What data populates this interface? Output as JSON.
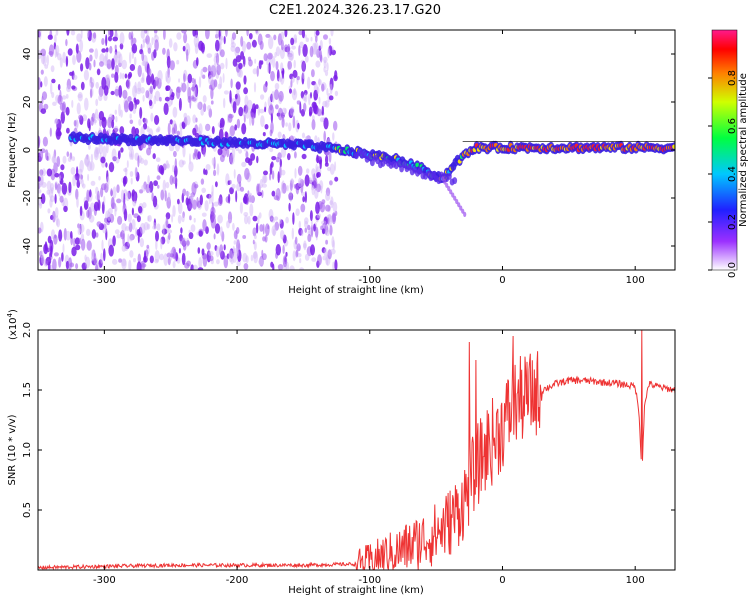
{
  "title": "C2E1.2024.326.23.17.G20",
  "colors": {
    "signal_line": "#ee3333",
    "spectrogram_background_purple": "#8a2be2",
    "colorbar_top": "#ff1a8c"
  },
  "chart_data": [
    {
      "type": "heatmap",
      "xlabel": "Height of straight line (km)",
      "ylabel": "Frequency (Hz)",
      "xlim": [
        -350,
        130
      ],
      "ylim": [
        -50,
        50
      ],
      "xticks": [
        -300,
        -200,
        -100,
        0,
        100
      ],
      "xtick_labels": [
        "-300",
        "-200",
        "-100",
        "0",
        "100"
      ],
      "yticks": [
        -40,
        -20,
        0,
        20,
        40
      ],
      "ytick_labels": [
        "-40",
        "-20",
        "0",
        "20",
        "40"
      ],
      "colorbar": {
        "label": "Normalized spectral amplitude",
        "range": [
          0,
          1
        ],
        "ticks": [
          0.0,
          0.2,
          0.4,
          0.6,
          0.8
        ],
        "tick_labels": [
          "0.0",
          "0.2",
          "0.4",
          "0.6",
          "0.8"
        ],
        "colormap": "rainbow"
      },
      "ridge": {
        "description": "main frequency trace",
        "x": [
          -325,
          -250,
          -200,
          -150,
          -120,
          -100,
          -80,
          -60,
          -45,
          -35,
          -20,
          0,
          30,
          60,
          100,
          130
        ],
        "y": [
          5,
          4,
          3,
          2,
          0,
          -2,
          -4,
          -8,
          -12,
          -5,
          1,
          1,
          1,
          1,
          1,
          1
        ]
      },
      "noise_region_end_x": -125
    },
    {
      "type": "line",
      "xlabel": "Height of straight line (km)",
      "ylabel": "SNR (10 * v/v)",
      "y_scale_label": "(x10",
      "y_scale_exponent": "4",
      "xlim": [
        -350,
        130
      ],
      "ylim": [
        0,
        2.0
      ],
      "xticks": [
        -300,
        -200,
        -100,
        0,
        100
      ],
      "xtick_labels": [
        "-300",
        "-200",
        "-100",
        "0",
        "100"
      ],
      "yticks": [
        0.5,
        1.0,
        1.5,
        2.0
      ],
      "ytick_labels": [
        "0.5",
        "1.0",
        "1.5",
        "2.0"
      ],
      "series": [
        {
          "x": [
            -350,
            -300,
            -250,
            -200,
            -150,
            -110,
            -100,
            -90,
            -80,
            -70,
            -60,
            -50,
            -40,
            -30,
            -25,
            -20,
            -15,
            -10,
            -5,
            0,
            5,
            10,
            15,
            20,
            30,
            40,
            50,
            60,
            70,
            80,
            90,
            100,
            103,
            105,
            107,
            110,
            120,
            130
          ],
          "y": [
            0.02,
            0.03,
            0.04,
            0.04,
            0.04,
            0.05,
            0.08,
            0.12,
            0.15,
            0.2,
            0.25,
            0.3,
            0.4,
            0.55,
            0.7,
            0.85,
            0.95,
            1.05,
            1.1,
            1.2,
            1.3,
            1.4,
            1.42,
            1.45,
            1.5,
            1.55,
            1.58,
            1.58,
            1.57,
            1.56,
            1.55,
            1.53,
            1.3,
            0.8,
            1.35,
            1.55,
            1.52,
            1.5
          ],
          "spikes": [
            {
              "x": -25,
              "y": 1.9
            },
            {
              "x": -20,
              "y": 1.75
            },
            {
              "x": 8,
              "y": 1.95
            },
            {
              "x": 105,
              "y": 2.0
            }
          ]
        }
      ]
    }
  ]
}
